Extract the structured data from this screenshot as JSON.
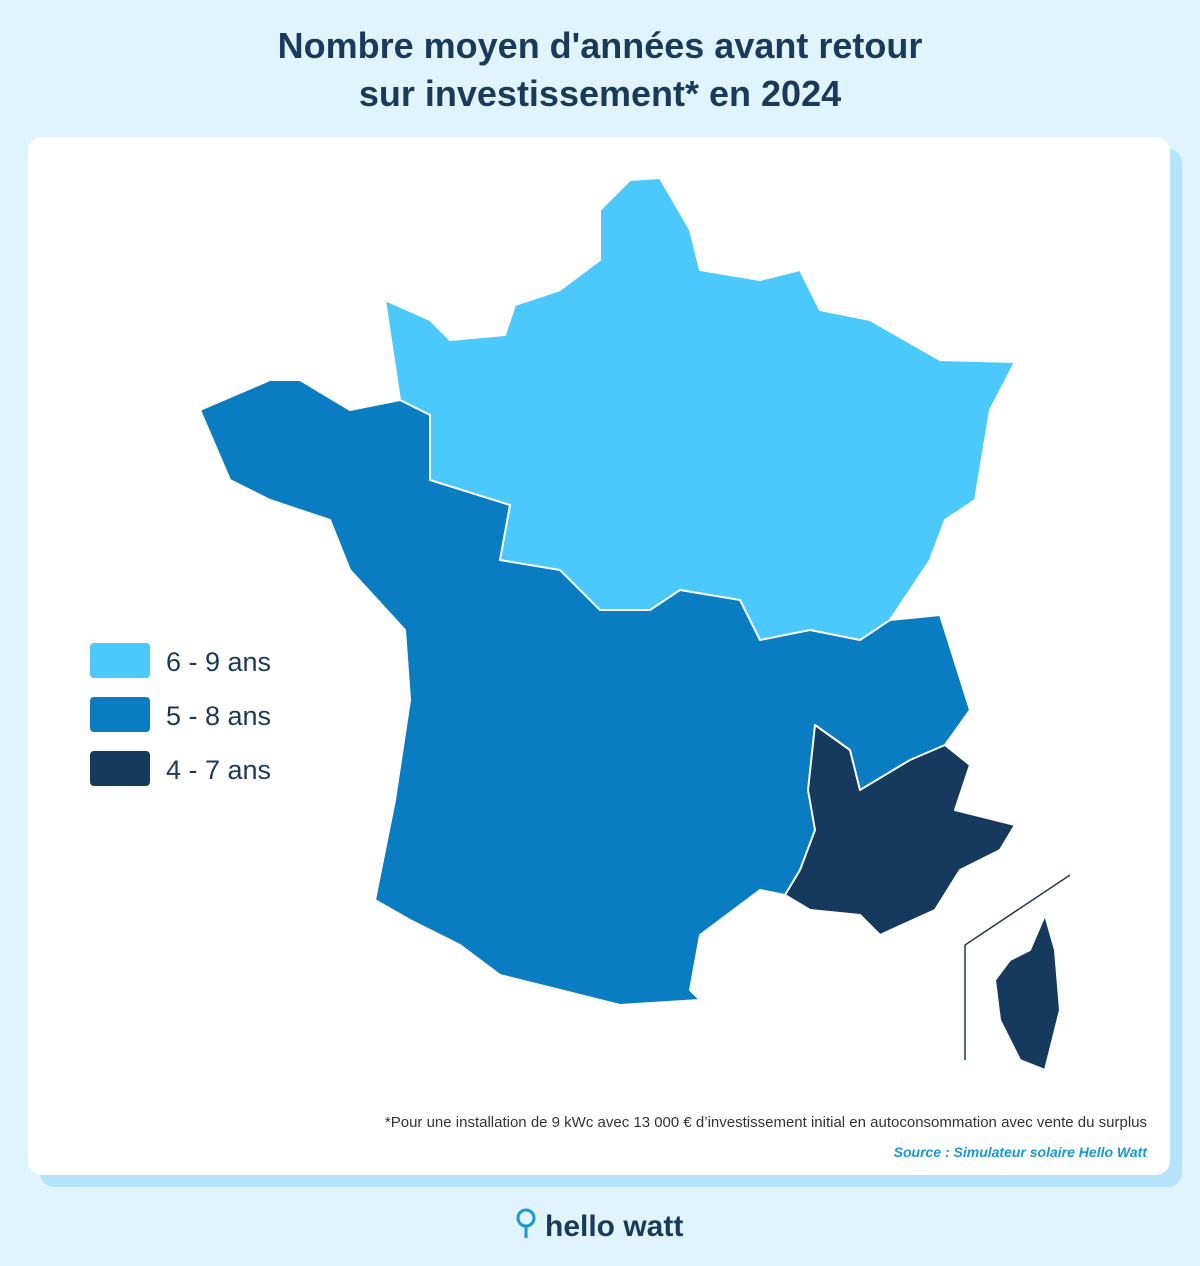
{
  "title": {
    "lines": [
      "Nombre moyen d'années avant retour",
      "sur investissement* en 2024"
    ]
  },
  "legend": {
    "items": [
      {
        "label": "6 - 9 ans",
        "color": "#4cc9fc"
      },
      {
        "label": "5 - 8 ans",
        "color": "#0a7dc2"
      },
      {
        "label": "4 - 7 ans",
        "color": "#163a5e"
      }
    ]
  },
  "footnote": "*Pour une installation de 9 kWc avec 13 000 € d’investissement initial en autoconsommation avec vente du surplus",
  "source": "Source : Simulateur solaire Hello Watt",
  "logo": {
    "text": "hello watt"
  }
}
